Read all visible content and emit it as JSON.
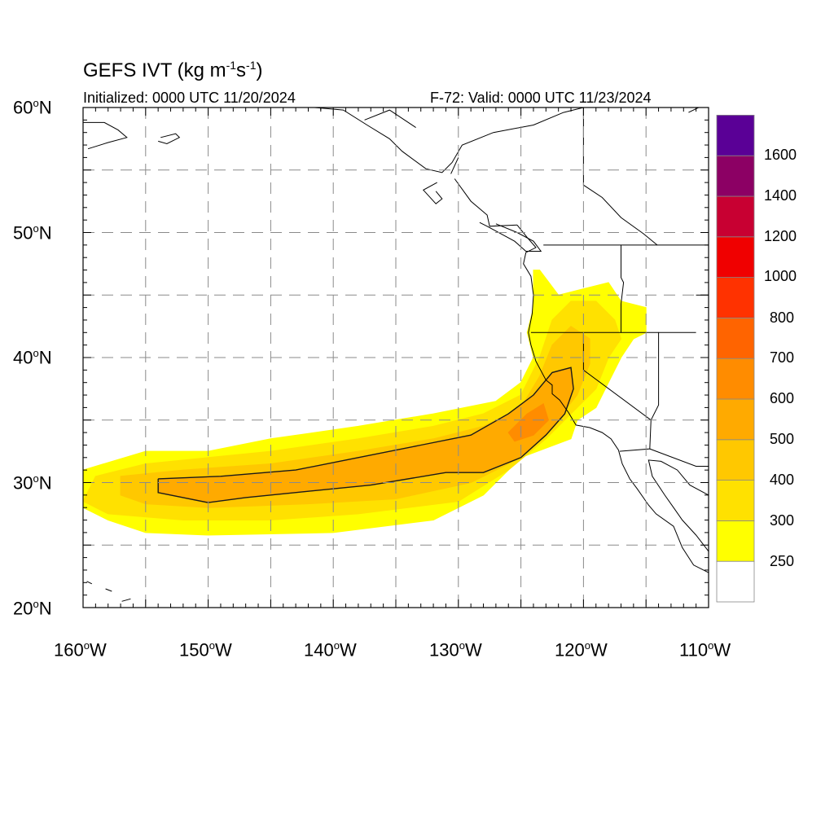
{
  "title": {
    "base": "GEFS IVT (kg m",
    "exp1": "-1",
    "mid": "s",
    "exp2": "-1",
    "end": ")"
  },
  "subtitle_left": "Initialized: 0000 UTC 11/20/2024",
  "subtitle_right": "F-72: Valid: 0000 UTC 11/23/2024",
  "lat_labels": [
    {
      "num": "60",
      "deg": "o",
      "dir": "N"
    },
    {
      "num": "50",
      "deg": "o",
      "dir": "N"
    },
    {
      "num": "40",
      "deg": "o",
      "dir": "N"
    },
    {
      "num": "30",
      "deg": "o",
      "dir": "N"
    },
    {
      "num": "20",
      "deg": "o",
      "dir": "N"
    }
  ],
  "lon_labels": [
    {
      "num": "160",
      "deg": "o",
      "dir": "W"
    },
    {
      "num": "150",
      "deg": "o",
      "dir": "W"
    },
    {
      "num": "140",
      "deg": "o",
      "dir": "W"
    },
    {
      "num": "130",
      "deg": "o",
      "dir": "W"
    },
    {
      "num": "120",
      "deg": "o",
      "dir": "W"
    },
    {
      "num": "110",
      "deg": "o",
      "dir": "W"
    }
  ],
  "colorbar": {
    "labels": [
      "1600",
      "1400",
      "1200",
      "1000",
      "800",
      "700",
      "600",
      "500",
      "400",
      "300",
      "250"
    ],
    "colors": [
      "#ffffff",
      "#ffff00",
      "#ffe100",
      "#ffc800",
      "#ffaa00",
      "#ff8c00",
      "#ff6400",
      "#ff3200",
      "#f00000",
      "#c80032",
      "#8c0064",
      "#5a0096"
    ]
  },
  "map": {
    "lon_range": [
      -160,
      -110
    ],
    "lat_range": [
      20,
      60
    ],
    "gridline_lons": [
      -155,
      -150,
      -145,
      -140,
      -135,
      -130,
      -125,
      -120,
      -115
    ],
    "gridline_lats": [
      25,
      30,
      35,
      40,
      45,
      50,
      55
    ],
    "ivt_bands": [
      {
        "threshold": 250,
        "color": "#ffff00",
        "outline": [
          [
            -160,
            31
          ],
          [
            -155,
            32.5
          ],
          [
            -150,
            32.5
          ],
          [
            -145,
            33.5
          ],
          [
            -138,
            34.5
          ],
          [
            -132,
            35.5
          ],
          [
            -127,
            36.5
          ],
          [
            -125,
            38
          ],
          [
            -124,
            40
          ],
          [
            -124.5,
            42
          ],
          [
            -124,
            44
          ],
          [
            -124,
            47
          ],
          [
            -123.5,
            47
          ],
          [
            -122,
            45
          ],
          [
            -120,
            45.5
          ],
          [
            -118,
            46
          ],
          [
            -117,
            44.5
          ],
          [
            -115,
            44
          ],
          [
            -115,
            42
          ],
          [
            -116,
            41.5
          ],
          [
            -117,
            40
          ],
          [
            -118,
            38
          ],
          [
            -119,
            36
          ],
          [
            -120.5,
            35
          ],
          [
            -121,
            33.5
          ],
          [
            -125,
            32
          ],
          [
            -128,
            29
          ],
          [
            -132,
            27
          ],
          [
            -140,
            26
          ],
          [
            -150,
            25.8
          ],
          [
            -155,
            26
          ],
          [
            -158,
            27
          ],
          [
            -160,
            28
          ]
        ]
      },
      {
        "threshold": 300,
        "color": "#ffe100",
        "outline": [
          [
            -159,
            30.5
          ],
          [
            -155,
            31.5
          ],
          [
            -150,
            32
          ],
          [
            -145,
            32.5
          ],
          [
            -138,
            33.5
          ],
          [
            -132,
            34.5
          ],
          [
            -128,
            35.5
          ],
          [
            -125,
            37
          ],
          [
            -123.5,
            40
          ],
          [
            -122.5,
            43
          ],
          [
            -121,
            44.5
          ],
          [
            -119,
            44.5
          ],
          [
            -117.5,
            43
          ],
          [
            -117,
            41.5
          ],
          [
            -118,
            40
          ],
          [
            -119,
            37.5
          ],
          [
            -121,
            35.5
          ],
          [
            -123,
            33.5
          ],
          [
            -126,
            31
          ],
          [
            -130,
            28.5
          ],
          [
            -138,
            27.5
          ],
          [
            -145,
            27
          ],
          [
            -152,
            27
          ],
          [
            -158,
            27.5
          ],
          [
            -160,
            28.5
          ]
        ]
      },
      {
        "threshold": 400,
        "color": "#ffc800",
        "outline": [
          [
            -157,
            30.5
          ],
          [
            -152,
            31
          ],
          [
            -145,
            31.5
          ],
          [
            -138,
            32.5
          ],
          [
            -132,
            33.5
          ],
          [
            -128,
            34.5
          ],
          [
            -125,
            36
          ],
          [
            -123.5,
            38.5
          ],
          [
            -122.5,
            41
          ],
          [
            -121,
            42.5
          ],
          [
            -119.5,
            41.5
          ],
          [
            -119.5,
            39.5
          ],
          [
            -120.5,
            37
          ],
          [
            -122.5,
            34.5
          ],
          [
            -125,
            32
          ],
          [
            -129,
            30
          ],
          [
            -135,
            28.7
          ],
          [
            -142,
            28.3
          ],
          [
            -150,
            28
          ],
          [
            -155,
            28.3
          ],
          [
            -157,
            29
          ]
        ]
      },
      {
        "threshold": 500,
        "color": "#ffaa00",
        "outline": [
          [
            -154,
            30.3
          ],
          [
            -149,
            30.5
          ],
          [
            -143,
            31
          ],
          [
            -138,
            32
          ],
          [
            -133,
            33
          ],
          [
            -129,
            33.8
          ],
          [
            -126,
            35.5
          ],
          [
            -124,
            37
          ],
          [
            -122.5,
            38.8
          ],
          [
            -121,
            39.2
          ],
          [
            -120.8,
            37.5
          ],
          [
            -121.5,
            35.5
          ],
          [
            -123,
            33.8
          ],
          [
            -125,
            32
          ],
          [
            -128,
            30.8
          ],
          [
            -131,
            30.8
          ],
          [
            -137,
            29.8
          ],
          [
            -142,
            29.3
          ],
          [
            -147,
            28.8
          ],
          [
            -150,
            28.4
          ],
          [
            -154,
            29.2
          ]
        ]
      },
      {
        "threshold": 600,
        "color": "#ff8c00",
        "outline": [
          [
            -126,
            34
          ],
          [
            -124.5,
            35.5
          ],
          [
            -123.2,
            36.3
          ],
          [
            -122.8,
            35
          ],
          [
            -124,
            33.8
          ],
          [
            -125.5,
            33.3
          ]
        ]
      }
    ],
    "contour_500": [
      [
        -154,
        30.3
      ],
      [
        -149,
        30.5
      ],
      [
        -143,
        31
      ],
      [
        -138,
        32
      ],
      [
        -133,
        33
      ],
      [
        -129,
        33.8
      ],
      [
        -126,
        35.5
      ],
      [
        -124,
        37
      ],
      [
        -122.5,
        38.8
      ],
      [
        -121,
        39.2
      ],
      [
        -120.8,
        37.5
      ],
      [
        -121.5,
        35.5
      ],
      [
        -123,
        33.8
      ],
      [
        -125,
        32
      ],
      [
        -128,
        30.8
      ],
      [
        -131,
        30.8
      ],
      [
        -137,
        29.8
      ],
      [
        -142,
        29.3
      ],
      [
        -147,
        28.8
      ],
      [
        -150,
        28.4
      ],
      [
        -154,
        29.2
      ],
      [
        -154,
        30.3
      ]
    ],
    "coastlines": [
      [
        [
          -125.3,
          50.6
        ],
        [
          -124.5,
          49.6
        ],
        [
          -123.8,
          48.8
        ],
        [
          -124.6,
          48.4
        ],
        [
          -124.8,
          47.5
        ],
        [
          -124.2,
          46.5
        ],
        [
          -124,
          45
        ],
        [
          -124.1,
          43.5
        ],
        [
          -124.4,
          42
        ],
        [
          -124.2,
          41
        ],
        [
          -123.8,
          39.7
        ],
        [
          -123,
          38.2
        ],
        [
          -122.5,
          37.8
        ],
        [
          -122.5,
          37.1
        ],
        [
          -121.9,
          36.6
        ],
        [
          -121.2,
          35.6
        ],
        [
          -120.6,
          34.6
        ],
        [
          -119.5,
          34.4
        ],
        [
          -118.5,
          34
        ],
        [
          -117.8,
          33.5
        ],
        [
          -117.2,
          32.6
        ],
        [
          -116.9,
          31.5
        ],
        [
          -116.3,
          30.3
        ],
        [
          -115.7,
          29.5
        ],
        [
          -114.8,
          28.2
        ],
        [
          -114.2,
          27.5
        ],
        [
          -112.8,
          26.5
        ],
        [
          -112.1,
          24.8
        ],
        [
          -111.2,
          23.4
        ],
        [
          -110,
          22.8
        ]
      ],
      [
        [
          -110,
          29
        ],
        [
          -111.5,
          29.8
        ],
        [
          -112.5,
          31
        ],
        [
          -113.8,
          31.7
        ],
        [
          -114.8,
          31.8
        ],
        [
          -114.5,
          30.5
        ],
        [
          -113.5,
          29
        ],
        [
          -112.8,
          28
        ],
        [
          -112.1,
          27
        ],
        [
          -111,
          25.8
        ],
        [
          -110,
          24.5
        ]
      ],
      [
        [
          -120,
          60
        ],
        [
          -121.6,
          59.6
        ],
        [
          -124,
          58.6
        ],
        [
          -127.2,
          58
        ],
        [
          -129.7,
          57
        ],
        [
          -130.5,
          55.6
        ],
        [
          -131.3,
          54.8
        ],
        [
          -132.6,
          55.1
        ],
        [
          -134.5,
          56.5
        ],
        [
          -135.5,
          57.5
        ],
        [
          -137.3,
          58.6
        ],
        [
          -139.2,
          59.8
        ],
        [
          -141.5,
          60
        ]
      ],
      [
        [
          -130.3,
          54.3
        ],
        [
          -129,
          52.5
        ],
        [
          -127.7,
          51.4
        ],
        [
          -127.5,
          50.5
        ],
        [
          -125.3,
          50.6
        ]
      ],
      [
        [
          -128.3,
          50.8
        ],
        [
          -127.7,
          50.5
        ],
        [
          -125.5,
          49.3
        ],
        [
          -124.6,
          48.5
        ],
        [
          -123.4,
          48.5
        ],
        [
          -124,
          49.3
        ],
        [
          -125.3,
          50
        ],
        [
          -127,
          50.7
        ]
      ],
      [
        [
          -131.7,
          54
        ],
        [
          -132.8,
          53.4
        ],
        [
          -131.8,
          52.3
        ],
        [
          -131.3,
          52.7
        ],
        [
          -131.8,
          53.3
        ]
      ],
      [
        [
          -155.4,
          20
        ],
        [
          -155.9,
          19.5
        ]
      ],
      [
        [
          -156.9,
          20.5
        ],
        [
          -156.2,
          20.7
        ]
      ],
      [
        [
          -158.2,
          21.5
        ],
        [
          -157.7,
          21.3
        ]
      ],
      [
        [
          -159.7,
          22.1
        ],
        [
          -159.3,
          21.9
        ]
      ],
      [
        [
          -160,
          58.8
        ],
        [
          -158.3,
          58.8
        ],
        [
          -157.2,
          58.2
        ],
        [
          -156.5,
          57.6
        ],
        [
          -158,
          57.2
        ],
        [
          -159.6,
          56.7
        ]
      ],
      [
        [
          -153.8,
          57.6
        ],
        [
          -152.6,
          57.9
        ],
        [
          -152.3,
          57.6
        ],
        [
          -153.3,
          57.1
        ],
        [
          -154,
          57.3
        ]
      ],
      [
        [
          -110.8,
          60
        ],
        [
          -111.6,
          59.6
        ]
      ]
    ],
    "borders": [
      [
        [
          -123.2,
          49
        ],
        [
          -110,
          49
        ]
      ],
      [
        [
          -117,
          49
        ],
        [
          -117,
          46.4
        ],
        [
          -116.8,
          46
        ],
        [
          -117,
          44.3
        ],
        [
          -117,
          42
        ],
        [
          -124.2,
          42
        ]
      ],
      [
        [
          -120,
          42
        ],
        [
          -120,
          39
        ],
        [
          -114.6,
          35
        ],
        [
          -114.7,
          32.7
        ],
        [
          -117.1,
          32.5
        ]
      ],
      [
        [
          -114.6,
          35
        ],
        [
          -114,
          36.2
        ],
        [
          -114,
          42
        ],
        [
          -111,
          42
        ]
      ],
      [
        [
          -117,
          42
        ],
        [
          -114,
          42
        ]
      ],
      [
        [
          -114.7,
          32.7
        ],
        [
          -111,
          31.3
        ],
        [
          -110,
          31.3
        ]
      ],
      [
        [
          -111,
          45
        ],
        [
          -110,
          45
        ]
      ],
      [
        [
          -141,
          60
        ],
        [
          -141,
          59.8
        ]
      ],
      [
        [
          -133.4,
          58.4
        ],
        [
          -135.5,
          59.8
        ],
        [
          -137.5,
          59
        ]
      ],
      [
        [
          -130,
          56
        ],
        [
          -130.6,
          54.7
        ]
      ],
      [
        [
          -120,
          60
        ],
        [
          -120,
          53.8
        ],
        [
          -118.5,
          52.8
        ],
        [
          -117,
          51.2
        ],
        [
          -115.2,
          49.9
        ],
        [
          -114.1,
          49
        ]
      ]
    ]
  }
}
